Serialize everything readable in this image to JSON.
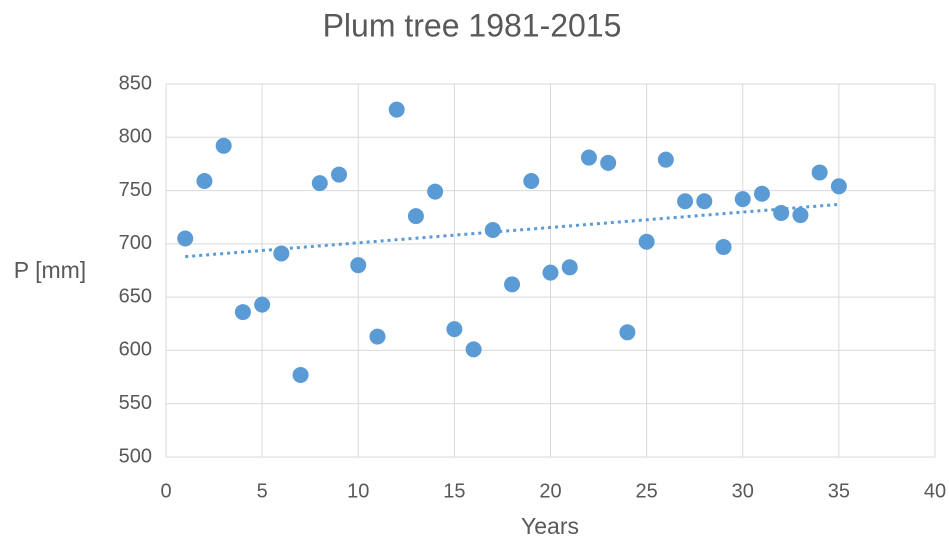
{
  "chart_data": {
    "type": "scatter",
    "title": "Plum tree 1981-2015",
    "xlabel": "Years",
    "ylabel": "P [mm]",
    "series": [
      {
        "name": "P",
        "color": "#5b9bd5",
        "x": [
          1,
          2,
          3,
          4,
          5,
          6,
          7,
          8,
          9,
          10,
          11,
          12,
          13,
          14,
          15,
          16,
          17,
          18,
          19,
          20,
          21,
          22,
          23,
          24,
          25,
          26,
          27,
          28,
          29,
          30,
          31,
          32,
          33,
          34,
          35
        ],
        "values": [
          705,
          759,
          792,
          636,
          643,
          691,
          577,
          757,
          765,
          680,
          613,
          826,
          726,
          749,
          620,
          601,
          713,
          662,
          759,
          673,
          678,
          781,
          776,
          617,
          702,
          779,
          740,
          740,
          697,
          742,
          747,
          729,
          727,
          767,
          754
        ]
      }
    ],
    "trendline": {
      "x": [
        1,
        35
      ],
      "y": [
        688,
        737
      ],
      "color": "#5b9bd5",
      "style": "dotted"
    },
    "xlim": [
      0,
      40
    ],
    "xticks": [
      0,
      5,
      10,
      15,
      20,
      25,
      30,
      35,
      40
    ],
    "ylim": [
      500,
      850
    ],
    "yticks": [
      500,
      550,
      600,
      650,
      700,
      750,
      800,
      850
    ],
    "grid": true
  }
}
